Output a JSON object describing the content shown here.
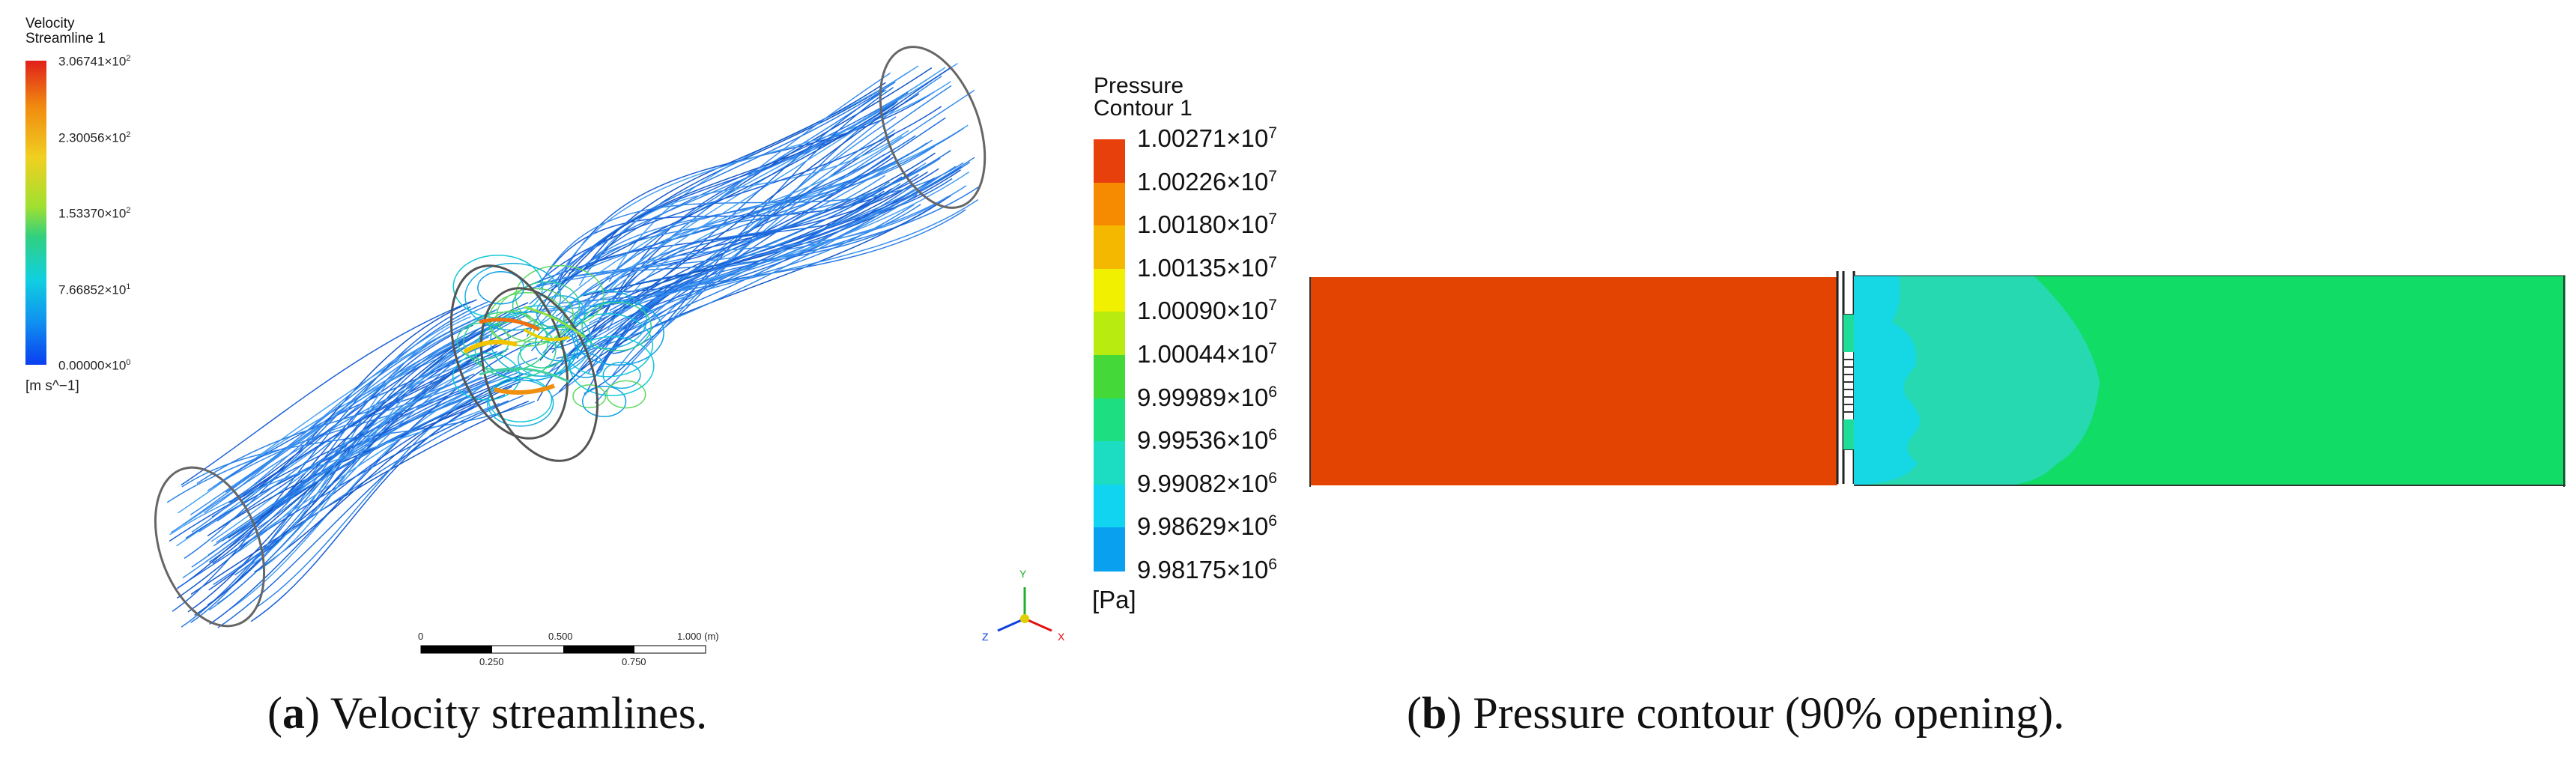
{
  "panel_a": {
    "legend_title_1": "Velocity",
    "legend_title_2": "Streamline 1",
    "legend_ticks": [
      {
        "mant": "3.06741",
        "exp": "2"
      },
      {
        "mant": "2.30056",
        "exp": "2"
      },
      {
        "mant": "1.53370",
        "exp": "2"
      },
      {
        "mant": "7.66852",
        "exp": "1"
      },
      {
        "mant": "0.00000",
        "exp": "0"
      }
    ],
    "legend_unit": "[m s^−1]",
    "scale_labels_top": [
      "0",
      "0.500",
      "1.000 (m)"
    ],
    "scale_labels_bottom": [
      "0.250",
      "0.750"
    ],
    "axis_labels": {
      "y": "Y",
      "z": "Z",
      "x": "X"
    },
    "colors": [
      "#d7191c",
      "#f4a000",
      "#e6e600",
      "#33cc33",
      "#00d4d4",
      "#1a73e8",
      "#0000ff"
    ]
  },
  "panel_b": {
    "legend_title_1": "Pressure",
    "legend_title_2": "Contour 1",
    "legend_ticks": [
      {
        "mant": "1.00271",
        "exp": "7"
      },
      {
        "mant": "1.00226",
        "exp": "7"
      },
      {
        "mant": "1.00180",
        "exp": "7"
      },
      {
        "mant": "1.00135",
        "exp": "7"
      },
      {
        "mant": "1.00090",
        "exp": "7"
      },
      {
        "mant": "1.00044",
        "exp": "7"
      },
      {
        "mant": "9.99989",
        "exp": "6"
      },
      {
        "mant": "9.99536",
        "exp": "6"
      },
      {
        "mant": "9.99082",
        "exp": "6"
      },
      {
        "mant": "9.98629",
        "exp": "6"
      },
      {
        "mant": "9.98175",
        "exp": "6"
      }
    ],
    "legend_unit": "[Pa]",
    "bands": [
      "#e8400c",
      "#f68a00",
      "#f5b800",
      "#f0f000",
      "#b8ec10",
      "#44d938",
      "#1ede82",
      "#1cddc2",
      "#10d4f0",
      "#0aa0f0",
      "#1060e8"
    ],
    "colors": {
      "high": "#e34402",
      "mid": "#26d9b0",
      "low": "#10dc66",
      "cyan": "#16d7e4"
    }
  },
  "captions": {
    "a_label": "a",
    "a_text": ") Velocity streamlines.",
    "b_label": "b",
    "b_text": ") Pressure contour (90% opening)."
  },
  "times": "×10"
}
